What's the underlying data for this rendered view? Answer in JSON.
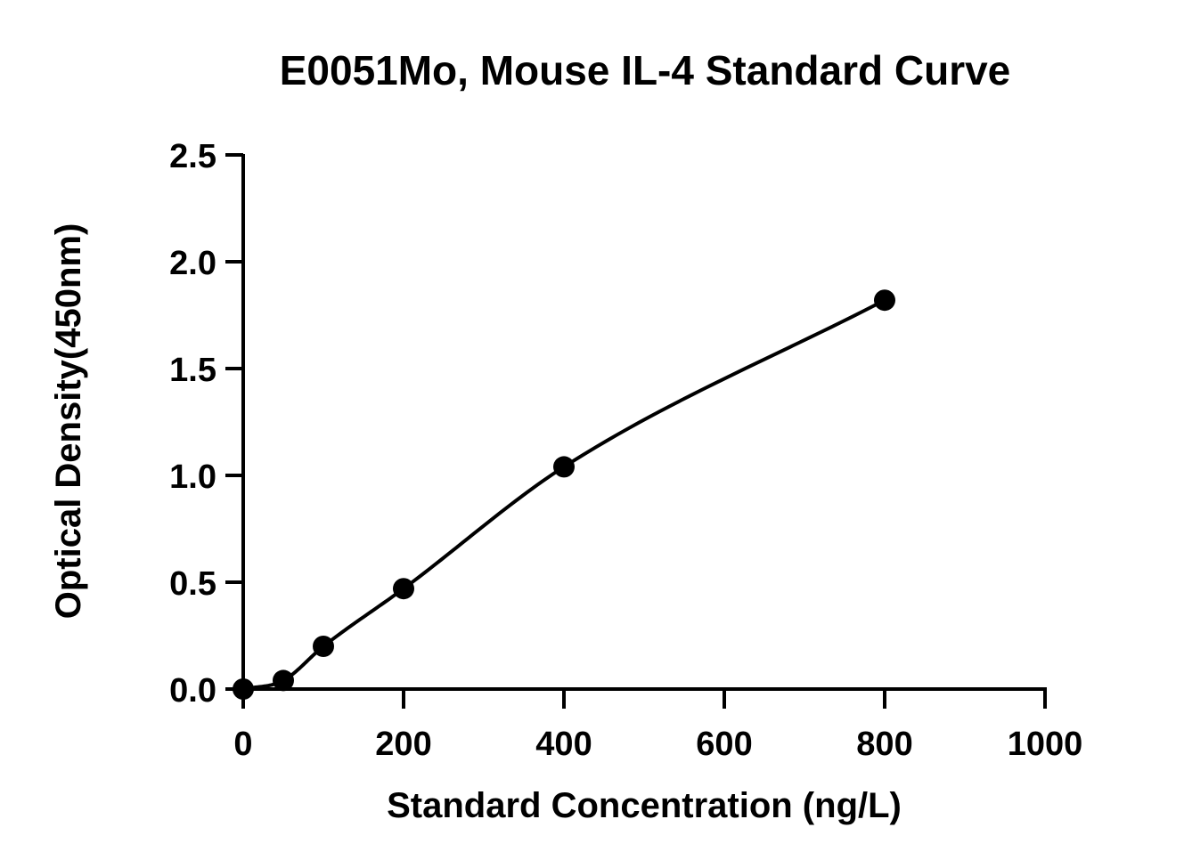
{
  "chart_data": {
    "type": "scatter",
    "title": "E0051Mo, Mouse IL-4 Standard Curve",
    "xlabel": "Standard Concentration (ng/L)",
    "ylabel": "Optical Density(450nm)",
    "xlim": [
      0,
      1000
    ],
    "ylim": [
      0,
      2.5
    ],
    "xticks": [
      "0",
      "200",
      "400",
      "600",
      "800",
      "1000"
    ],
    "yticks": [
      "0.0",
      "0.5",
      "1.0",
      "1.5",
      "2.0",
      "2.5"
    ],
    "grid": false,
    "legend": "none",
    "color": "#000000",
    "fit_curve": true,
    "series": [
      {
        "x": [
          0,
          50,
          100,
          200,
          400,
          800
        ],
        "y": [
          0.0,
          0.04,
          0.2,
          0.47,
          1.04,
          1.82
        ]
      }
    ]
  }
}
